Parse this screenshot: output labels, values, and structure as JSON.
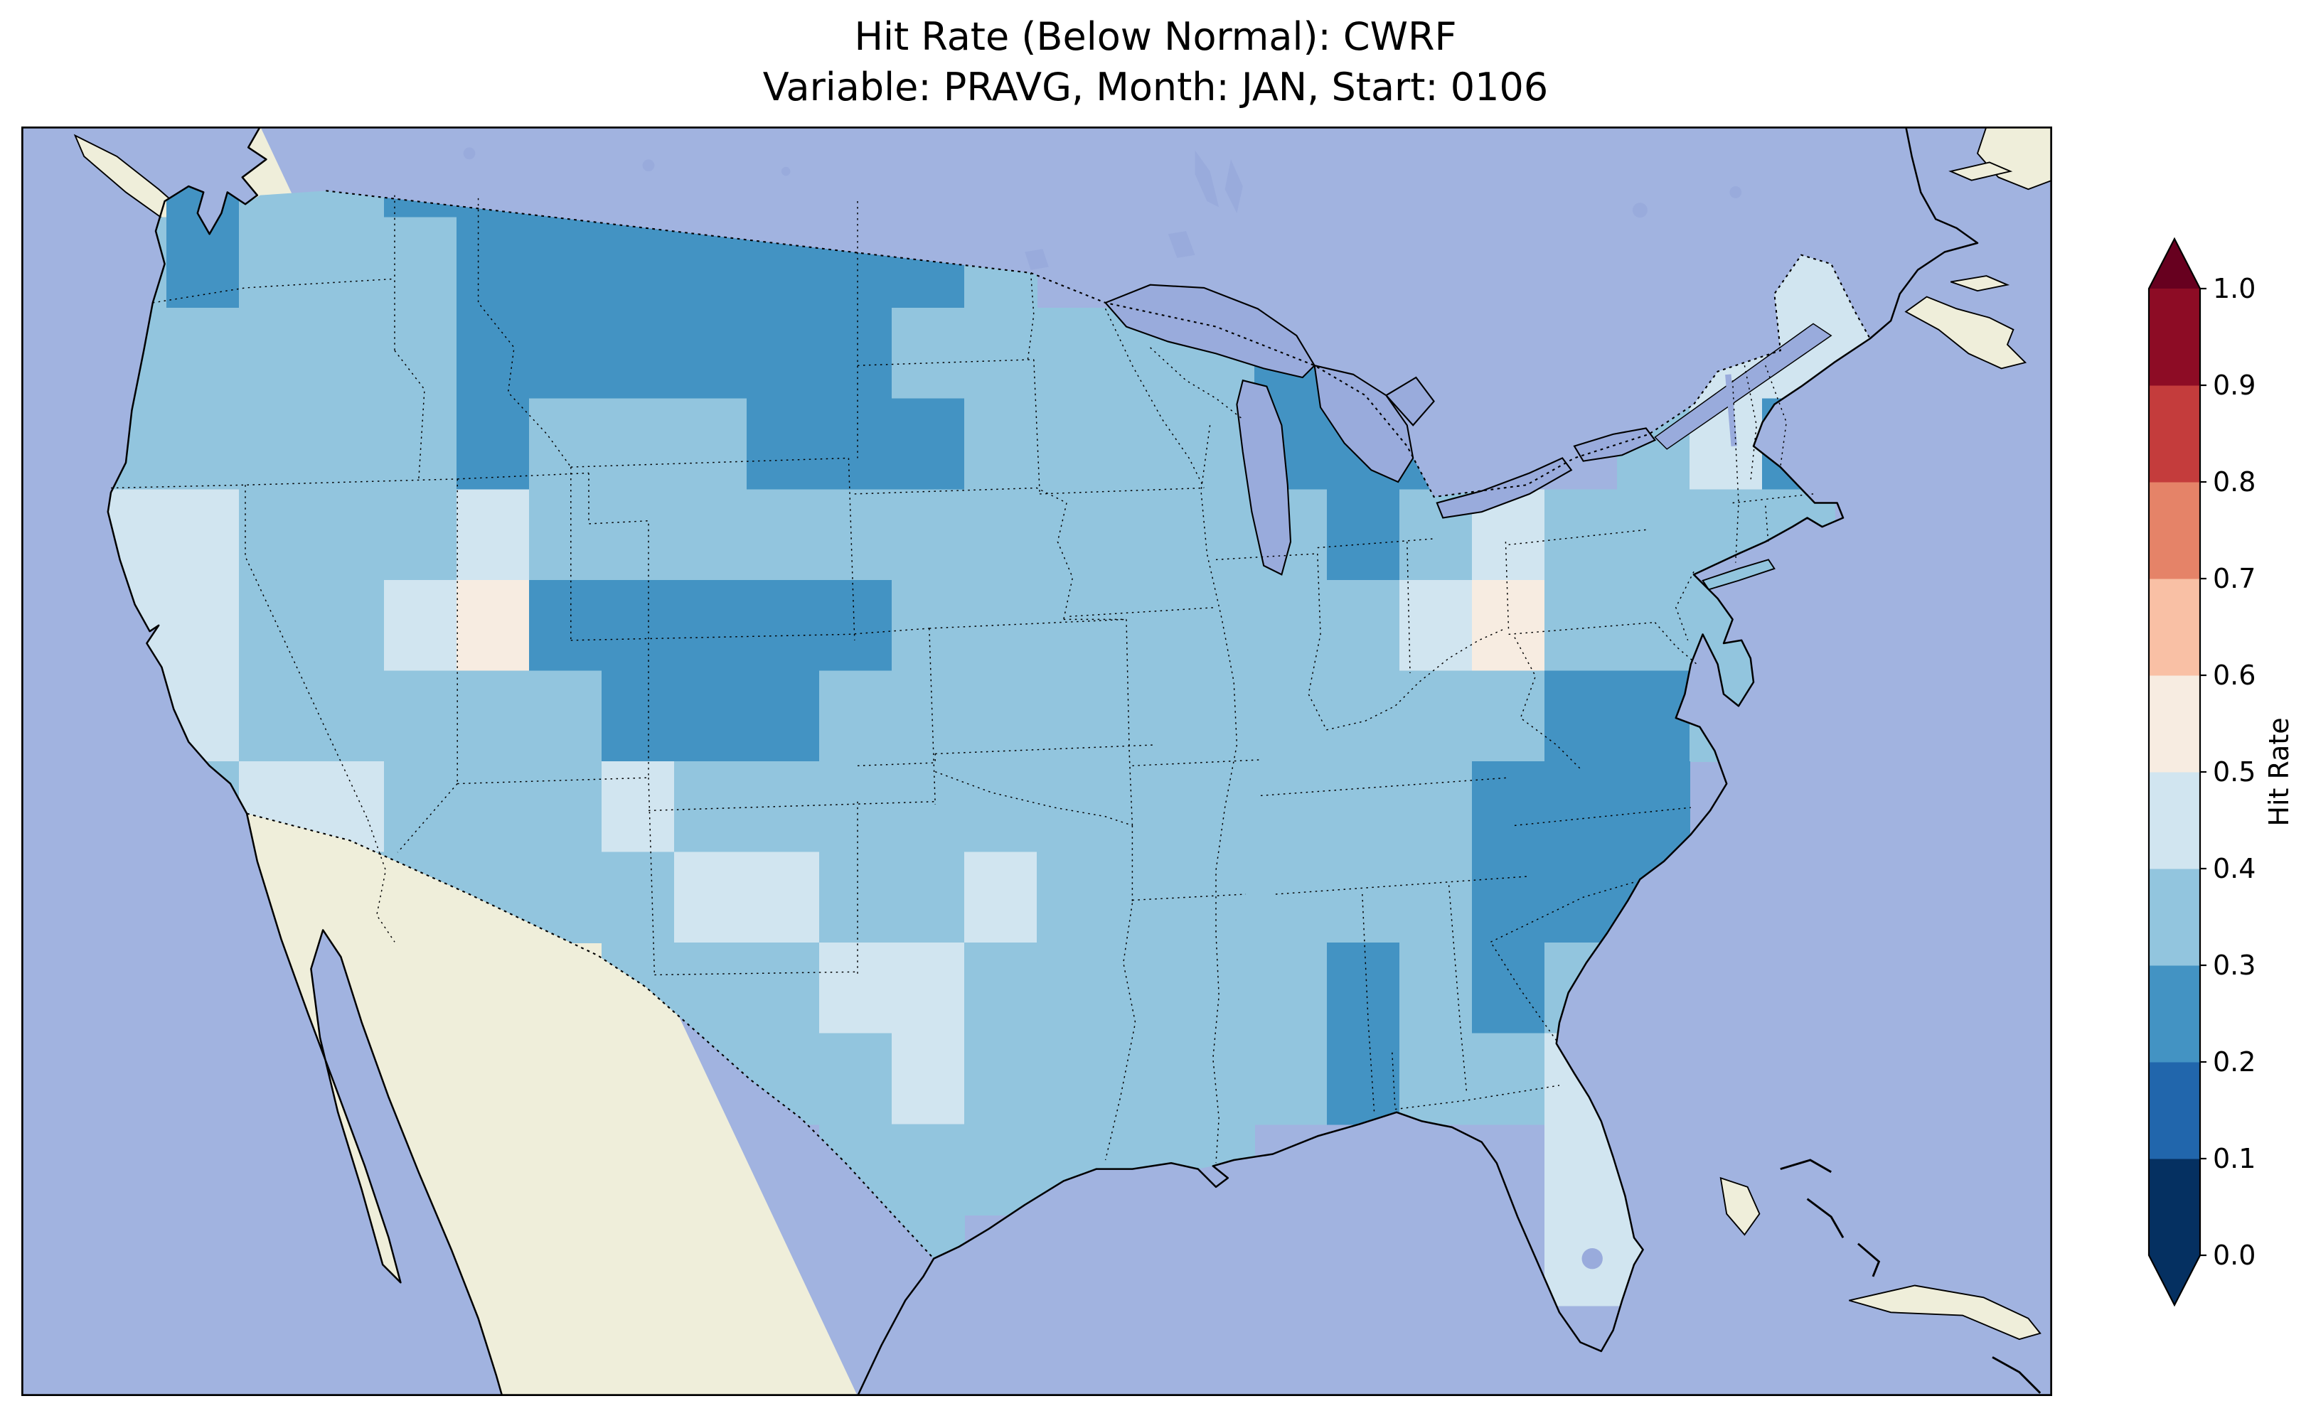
{
  "title": {
    "line1": "Hit Rate (Below Normal): CWRF",
    "line2": "Variable: PRAVG, Month: JAN, Start: 0106"
  },
  "colorbar": {
    "label": "Hit Rate",
    "ticks": [
      "0.0",
      "0.1",
      "0.2",
      "0.3",
      "0.4",
      "0.5",
      "0.6",
      "0.7",
      "0.8",
      "0.9",
      "1.0"
    ],
    "levels": [
      0.0,
      0.1,
      0.2,
      0.3,
      0.4,
      0.5,
      0.6,
      0.7,
      0.8,
      0.9,
      1.0
    ],
    "colors": [
      "#053061",
      "#2166ac",
      "#4393c3",
      "#92c5de",
      "#d1e5f0",
      "#f7ece1",
      "#f9c0a5",
      "#e58368",
      "#c43c3c",
      "#8d0c25"
    ],
    "under_color": "#053061",
    "over_color": "#67001f"
  },
  "map": {
    "ocean_color": "#a1b3e0",
    "land_color": "#efeeda",
    "lake_color": "#99abdc",
    "coastline_color": "#000000",
    "border_line_style": "dotted"
  },
  "chart_data": {
    "type": "heatmap",
    "title": "Hit Rate (Below Normal): CWRF",
    "subtitle": "Variable: PRAVG, Month: JAN, Start: 0106",
    "colorbar_label": "Hit Rate",
    "value_range": [
      0.0,
      1.0
    ],
    "levels": [
      0.0,
      0.1,
      0.2,
      0.3,
      0.4,
      0.5,
      0.6,
      0.7,
      0.8,
      0.9,
      1.0
    ],
    "region": "Contiguous United States",
    "dominant_bin": "0.3-0.4",
    "observed_bins": [
      0.25,
      0.35,
      0.45,
      0.55
    ],
    "grid": {
      "ncols": 28,
      "nrows": 14,
      "description": "Estimated hit-rate values on a coarse grid over the CONUS (row 0 = north, col 0 = west); null = outside model domain",
      "values": [
        [
          null,
          null,
          0.25,
          0.35,
          0.35,
          0.25,
          0.25,
          0.25,
          0.25,
          0.25,
          0.25,
          0.25,
          0.25,
          0.35,
          null,
          null,
          null,
          null,
          null,
          null,
          null,
          null,
          null,
          null,
          null,
          null,
          null,
          null
        ],
        [
          null,
          0.35,
          0.25,
          0.35,
          0.35,
          0.35,
          0.25,
          0.25,
          0.25,
          0.25,
          0.25,
          0.25,
          0.25,
          0.35,
          null,
          null,
          null,
          null,
          null,
          null,
          null,
          null,
          null,
          null,
          0.45,
          0.45,
          null,
          null
        ],
        [
          null,
          0.35,
          0.35,
          0.35,
          0.35,
          0.35,
          0.25,
          0.25,
          0.25,
          0.25,
          0.25,
          0.25,
          0.35,
          0.35,
          0.35,
          0.35,
          0.35,
          0.25,
          0.25,
          null,
          null,
          null,
          0.35,
          0.45,
          0.45,
          0.45,
          null,
          null
        ],
        [
          null,
          0.35,
          0.35,
          0.35,
          0.35,
          0.35,
          0.25,
          0.35,
          0.35,
          0.35,
          0.25,
          0.25,
          0.25,
          0.35,
          0.35,
          0.35,
          0.35,
          0.25,
          0.25,
          0.25,
          null,
          null,
          0.35,
          0.45,
          0.25,
          0.45,
          null,
          null
        ],
        [
          null,
          0.45,
          0.45,
          0.35,
          0.35,
          0.35,
          0.45,
          0.35,
          0.35,
          0.35,
          0.35,
          0.35,
          0.35,
          0.35,
          0.35,
          0.35,
          0.35,
          0.35,
          0.25,
          0.35,
          0.45,
          0.35,
          0.35,
          0.35,
          0.35,
          null,
          null,
          null
        ],
        [
          null,
          0.45,
          0.45,
          0.35,
          0.35,
          0.45,
          0.55,
          0.25,
          0.25,
          0.25,
          0.25,
          0.25,
          0.35,
          0.35,
          0.35,
          0.35,
          0.35,
          0.35,
          0.35,
          0.45,
          0.55,
          0.35,
          0.35,
          0.35,
          0.35,
          null,
          null,
          null
        ],
        [
          null,
          0.45,
          0.45,
          0.35,
          0.35,
          0.35,
          0.35,
          0.35,
          0.25,
          0.25,
          0.25,
          0.35,
          0.35,
          0.35,
          0.35,
          0.35,
          0.35,
          0.35,
          0.35,
          0.35,
          0.35,
          0.25,
          0.25,
          0.35,
          null,
          null,
          null,
          null
        ],
        [
          null,
          0.35,
          0.35,
          0.45,
          0.45,
          0.35,
          0.35,
          0.35,
          0.45,
          0.35,
          0.35,
          0.35,
          0.35,
          0.35,
          0.35,
          0.35,
          0.35,
          0.35,
          0.35,
          0.35,
          0.25,
          0.25,
          0.25,
          null,
          null,
          null,
          null,
          null
        ],
        [
          null,
          null,
          null,
          null,
          0.35,
          0.35,
          0.35,
          0.35,
          0.35,
          0.45,
          0.45,
          0.35,
          0.35,
          0.45,
          0.35,
          0.35,
          0.35,
          0.35,
          0.35,
          0.35,
          0.25,
          0.25,
          0.25,
          null,
          null,
          null,
          null,
          null
        ],
        [
          null,
          null,
          null,
          null,
          null,
          null,
          null,
          null,
          0.35,
          0.35,
          0.35,
          0.45,
          0.45,
          0.35,
          0.35,
          0.35,
          0.35,
          0.35,
          0.25,
          0.35,
          0.25,
          0.35,
          0.35,
          null,
          null,
          null,
          null,
          null
        ],
        [
          null,
          null,
          null,
          null,
          null,
          null,
          null,
          null,
          null,
          0.35,
          0.35,
          0.35,
          0.45,
          0.35,
          0.35,
          0.35,
          0.35,
          0.35,
          0.25,
          0.35,
          0.35,
          0.45,
          0.45,
          null,
          null,
          null,
          null,
          null
        ],
        [
          null,
          null,
          null,
          null,
          null,
          null,
          null,
          null,
          null,
          null,
          null,
          0.35,
          0.35,
          0.35,
          0.35,
          0.35,
          0.35,
          null,
          null,
          null,
          null,
          0.45,
          0.45,
          null,
          null,
          null,
          null,
          null
        ],
        [
          null,
          null,
          null,
          null,
          null,
          null,
          null,
          null,
          null,
          null,
          null,
          0.35,
          0.35,
          null,
          null,
          null,
          null,
          null,
          null,
          null,
          null,
          0.45,
          0.45,
          null,
          null,
          null,
          null,
          null
        ],
        [
          null,
          null,
          null,
          null,
          null,
          null,
          null,
          null,
          null,
          null,
          null,
          null,
          null,
          null,
          null,
          null,
          null,
          null,
          null,
          null,
          null,
          null,
          null,
          null,
          null,
          null,
          null,
          null
        ]
      ]
    }
  }
}
